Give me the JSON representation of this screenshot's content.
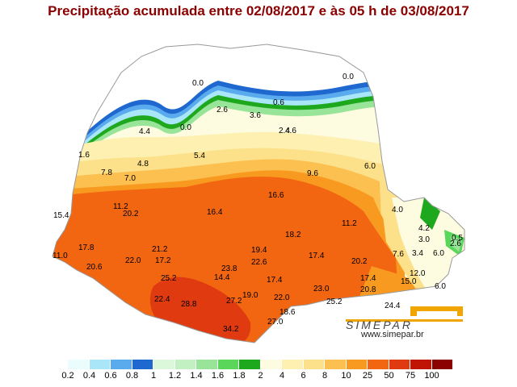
{
  "title": "Precipitação acumulada entre 02/08/2017 e às 05 h de 03/08/2017",
  "logo": {
    "name": "SIMEPAR",
    "url": "www.simepar.br",
    "color": "#f0a500"
  },
  "legend": [
    {
      "label": "0.2",
      "color": "#eafcfc"
    },
    {
      "label": "0.4",
      "color": "#a8e6f8"
    },
    {
      "label": "0.6",
      "color": "#5aaaee"
    },
    {
      "label": "0.8",
      "color": "#1f68d0"
    },
    {
      "label": "1",
      "color": "#dbf8db"
    },
    {
      "label": "1.2",
      "color": "#c2f0c2"
    },
    {
      "label": "1.4",
      "color": "#98e498"
    },
    {
      "label": "1.6",
      "color": "#5ad65a"
    },
    {
      "label": "1.8",
      "color": "#1ea81e"
    },
    {
      "label": "2",
      "color": "#fdfbe0"
    },
    {
      "label": "4",
      "color": "#fdf0b0"
    },
    {
      "label": "6",
      "color": "#fde08a"
    },
    {
      "label": "8",
      "color": "#fbc050"
    },
    {
      "label": "10",
      "color": "#f99a20"
    },
    {
      "label": "25",
      "color": "#f26611"
    },
    {
      "label": "50",
      "color": "#e03a10"
    },
    {
      "label": "75",
      "color": "#c01505"
    },
    {
      "label": "100",
      "color": "#8b0000"
    }
  ],
  "values": [
    {
      "text": "0.0",
      "region": "north-central"
    },
    {
      "text": "0.0",
      "region": "north-east"
    },
    {
      "text": "2.6",
      "region": "north"
    },
    {
      "text": "0.6",
      "region": "north"
    },
    {
      "text": "3.6",
      "region": "north"
    },
    {
      "text": "4.4",
      "region": "north-west"
    },
    {
      "text": "0.0",
      "region": "north-central"
    },
    {
      "text": "2.4",
      "region": "north-central"
    },
    {
      "text": "4.6",
      "region": "north-central"
    },
    {
      "text": "1.6",
      "region": "west"
    },
    {
      "text": "4.8",
      "region": "west"
    },
    {
      "text": "5.4",
      "region": "central-north"
    },
    {
      "text": "6.0",
      "region": "east"
    },
    {
      "text": "7.8",
      "region": "west"
    },
    {
      "text": "7.0",
      "region": "west"
    },
    {
      "text": "9.6",
      "region": "central"
    },
    {
      "text": "16.6",
      "region": "central"
    },
    {
      "text": "4.0",
      "region": "east"
    },
    {
      "text": "11.2",
      "region": "west"
    },
    {
      "text": "20.2",
      "region": "west"
    },
    {
      "text": "16.4",
      "region": "central"
    },
    {
      "text": "15.4",
      "region": "west"
    },
    {
      "text": "11.2",
      "region": "central-east"
    },
    {
      "text": "4.2",
      "region": "coast"
    },
    {
      "text": "18.2",
      "region": "central"
    },
    {
      "text": "3.0",
      "region": "coast"
    },
    {
      "text": "0.5",
      "region": "coast"
    },
    {
      "text": "17.8",
      "region": "south-west"
    },
    {
      "text": "11.0",
      "region": "south-west"
    },
    {
      "text": "21.2",
      "region": "south-west"
    },
    {
      "text": "19.4",
      "region": "south-central"
    },
    {
      "text": "2.6",
      "region": "coast"
    },
    {
      "text": "22.0",
      "region": "south-west"
    },
    {
      "text": "17.2",
      "region": "south-west"
    },
    {
      "text": "22.6",
      "region": "south-central"
    },
    {
      "text": "17.4",
      "region": "south-central"
    },
    {
      "text": "20.2",
      "region": "south-east"
    },
    {
      "text": "7.6",
      "region": "east"
    },
    {
      "text": "3.4",
      "region": "east"
    },
    {
      "text": "6.0",
      "region": "coast"
    },
    {
      "text": "20.6",
      "region": "south-west"
    },
    {
      "text": "23.8",
      "region": "south-central"
    },
    {
      "text": "12.0",
      "region": "south-east"
    },
    {
      "text": "25.2",
      "region": "south"
    },
    {
      "text": "14.4",
      "region": "south"
    },
    {
      "text": "17.4",
      "region": "south-central"
    },
    {
      "text": "17.4",
      "region": "south-east"
    },
    {
      "text": "15.0",
      "region": "south-east"
    },
    {
      "text": "6.0",
      "region": "coast"
    },
    {
      "text": "23.0",
      "region": "south-east"
    },
    {
      "text": "20.8",
      "region": "south-east"
    },
    {
      "text": "19.0",
      "region": "south"
    },
    {
      "text": "22.4",
      "region": "south"
    },
    {
      "text": "27.2",
      "region": "south"
    },
    {
      "text": "22.0",
      "region": "south"
    },
    {
      "text": "25.2",
      "region": "south-east"
    },
    {
      "text": "28.8",
      "region": "south"
    },
    {
      "text": "24.4",
      "region": "south-east"
    },
    {
      "text": "18.6",
      "region": "south"
    },
    {
      "text": "27.0",
      "region": "south"
    },
    {
      "text": "34.2",
      "region": "south"
    }
  ]
}
